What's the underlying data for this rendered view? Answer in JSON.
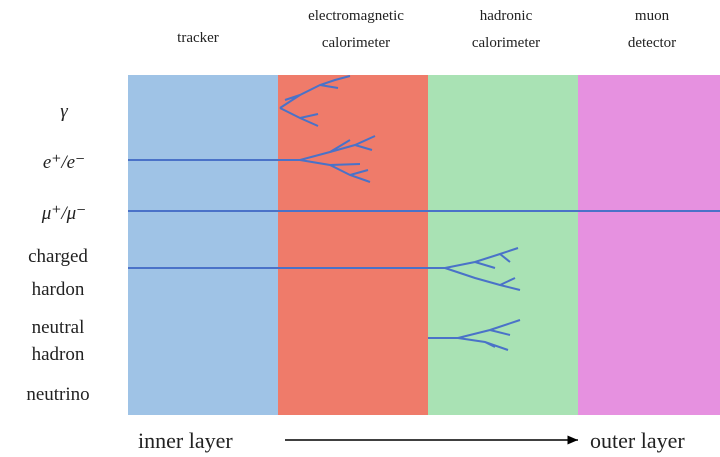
{
  "layers": [
    {
      "lines": [
        "tracker"
      ],
      "color": "#9fc3e6"
    },
    {
      "lines": [
        "electromagnetic",
        "calorimeter"
      ],
      "color": "#ef7b6a"
    },
    {
      "lines": [
        "hadronic",
        "calorimeter"
      ],
      "color": "#a9e2b4"
    },
    {
      "lines": [
        "muon",
        "detector"
      ],
      "color": "#e691e0"
    }
  ],
  "particles": [
    {
      "lines": [
        "γ"
      ]
    },
    {
      "lines": [
        "e⁺/e⁻"
      ]
    },
    {
      "lines": [
        "μ⁺/μ⁻"
      ]
    },
    {
      "lines": [
        "charged",
        "hardon"
      ]
    },
    {
      "lines": [
        "neutral",
        "hadron"
      ]
    },
    {
      "lines": [
        "neutrino"
      ]
    }
  ],
  "axis": {
    "start": "inner layer",
    "end": "outer layer"
  }
}
